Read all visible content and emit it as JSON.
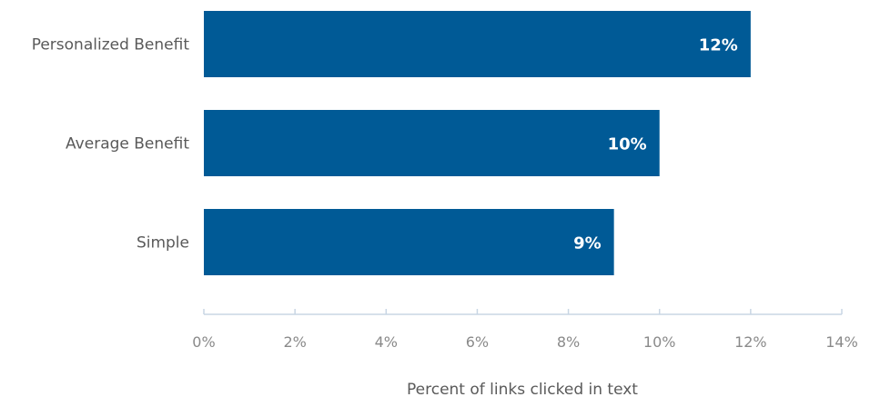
{
  "chart_data": {
    "type": "bar",
    "orientation": "horizontal",
    "categories": [
      "Personalized Benefit",
      "Average Benefit",
      "Simple"
    ],
    "values": [
      12,
      10,
      9
    ],
    "data_labels": [
      "12%",
      "10%",
      "9%"
    ],
    "xlim": [
      0,
      14
    ],
    "x_ticks": [
      0,
      2,
      4,
      6,
      8,
      10,
      12,
      14
    ],
    "x_tick_labels": [
      "0%",
      "2%",
      "4%",
      "6%",
      "8%",
      "10%",
      "12%",
      "14%"
    ],
    "xlabel": "Percent of links clicked in text",
    "title": "",
    "grid": false,
    "legend": "none",
    "colors": {
      "bar": "#005a96",
      "axis": "#c8d6e4",
      "value_label": "#ffffff"
    }
  }
}
